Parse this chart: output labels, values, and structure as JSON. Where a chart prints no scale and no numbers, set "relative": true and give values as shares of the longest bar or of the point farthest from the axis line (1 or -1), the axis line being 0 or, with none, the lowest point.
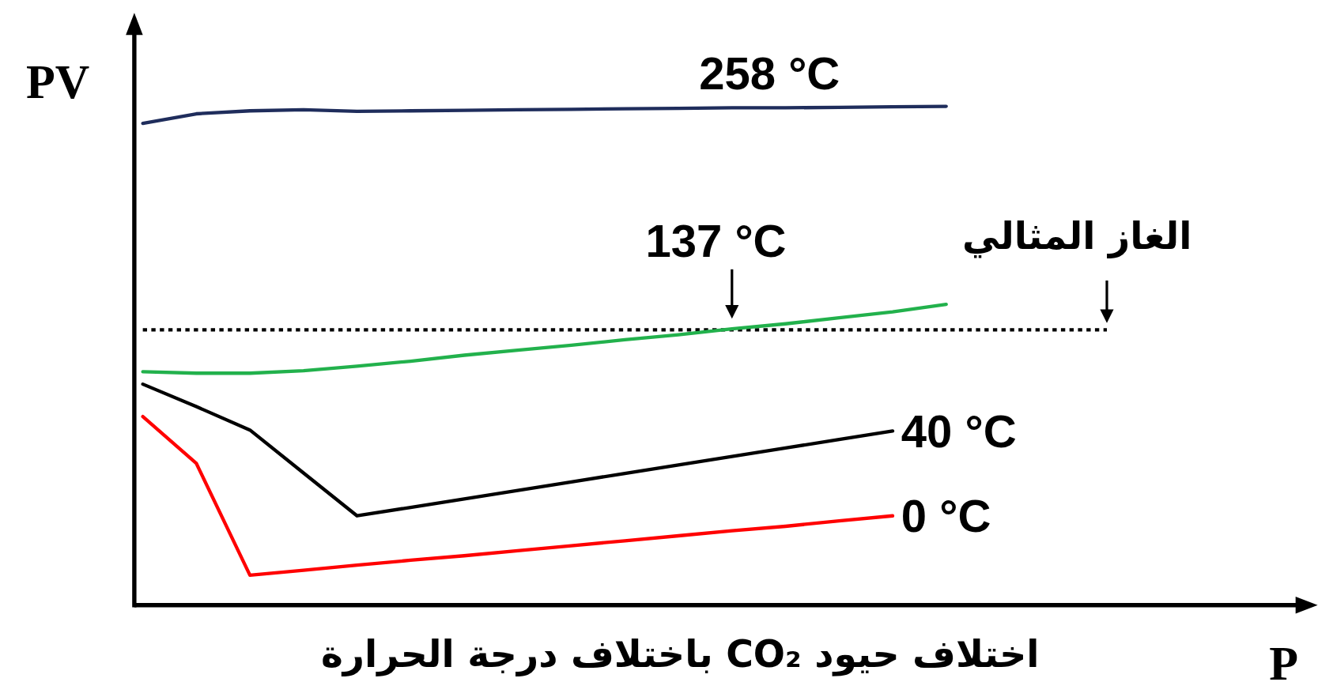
{
  "chart_data": {
    "type": "line",
    "relative": true,
    "ylabel": "PV",
    "annotations": [
      "اختلاف حيود CO₂ باختلاف درجة الحرارة",
      "P"
    ],
    "categories": [
      null,
      null,
      null,
      null,
      null,
      null,
      null,
      null,
      null,
      null,
      null,
      null,
      null,
      null,
      null,
      null
    ],
    "series": [
      {
        "name": "258 °C",
        "color": "#1f2d5c",
        "values": [
          0.966,
          0.985,
          0.991,
          0.993,
          0.99,
          0.991,
          0.992,
          0.993,
          0.994,
          0.995,
          0.996,
          0.997,
          0.997,
          0.998,
          0.999,
          1.0
        ]
      },
      {
        "name": "137 °C",
        "color": "#22b14c",
        "values": [
          0.468,
          0.465,
          0.465,
          0.47,
          0.479,
          0.489,
          0.501,
          0.511,
          0.521,
          0.532,
          0.542,
          0.554,
          0.564,
          0.576,
          0.588,
          0.603
        ]
      },
      {
        "name": "40 °C",
        "color": "#000000",
        "values": [
          0.443,
          0.398,
          0.351,
          0.265,
          0.179,
          0.196,
          0.213,
          0.23,
          0.247,
          0.264,
          0.281,
          0.298,
          0.315,
          0.332,
          0.349,
          null
        ]
      },
      {
        "name": "0 °C",
        "color": "#ff0000",
        "values": [
          0.378,
          0.284,
          0.06,
          0.07,
          0.08,
          0.09,
          0.099,
          0.109,
          0.119,
          0.129,
          0.139,
          0.149,
          0.158,
          0.169,
          0.179,
          null
        ]
      }
    ],
    "ref_lines": [
      {
        "axis": "y",
        "value": 0.552,
        "label": "الغاز المثالي",
        "color": "#000000",
        "line_style": "dotted"
      }
    ],
    "line_style": "solid"
  }
}
